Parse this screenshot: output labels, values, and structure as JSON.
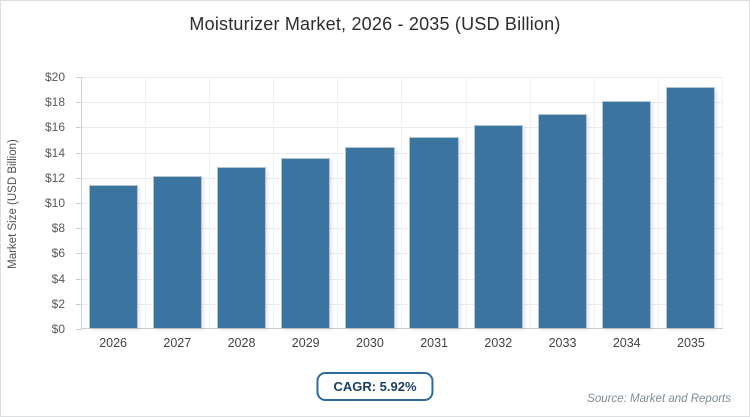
{
  "chart_data": {
    "type": "bar",
    "title": "Moisturizer Market, 2026 - 2035 (USD Billion)",
    "xlabel": "",
    "ylabel": "Market Size (USD Billion)",
    "categories": [
      "2026",
      "2027",
      "2028",
      "2029",
      "2030",
      "2031",
      "2032",
      "2033",
      "2034",
      "2035"
    ],
    "values": [
      11.43,
      12.11,
      12.82,
      13.58,
      14.39,
      15.24,
      16.14,
      17.09,
      18.11,
      19.18
    ],
    "ylim": [
      0,
      20
    ],
    "ytick_step": 2,
    "ytick_labels": [
      "$0",
      "$2",
      "$4",
      "$6",
      "$8",
      "$10",
      "$12",
      "$14",
      "$16",
      "$18",
      "$20"
    ],
    "grid": true,
    "legend": "none"
  },
  "footer": {
    "cagr_label": "CAGR: 5.92%",
    "source": "Source: Market and Reports"
  },
  "colors": {
    "bar_fill": "#3b749e",
    "bar_border": "#b3c6d4",
    "grid_line": "#e9ebed",
    "badge_border": "#2e6b9d",
    "badge_text": "#1c3f61"
  }
}
